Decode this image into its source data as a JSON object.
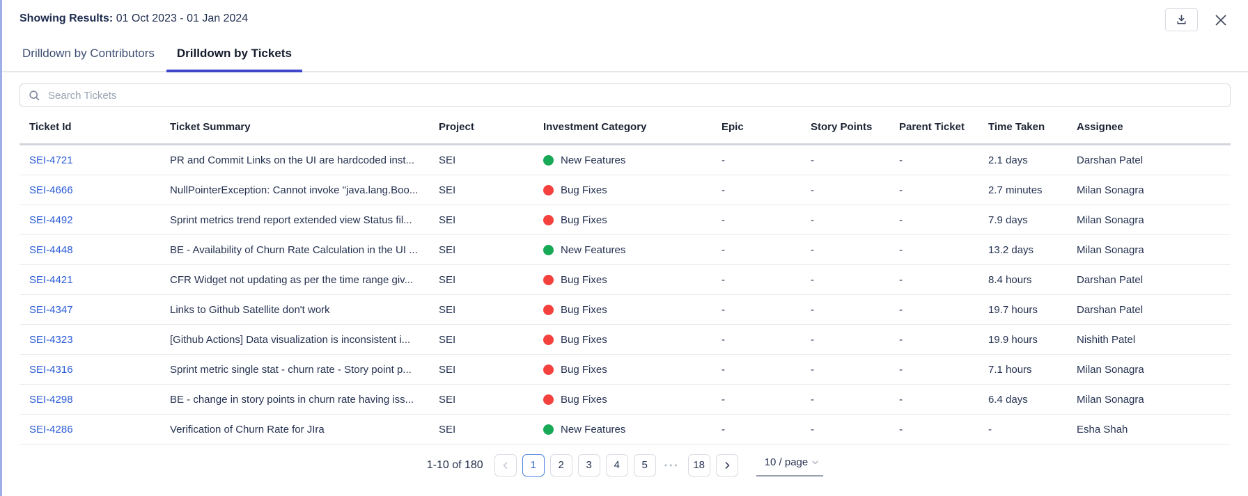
{
  "header": {
    "showing_results_label": "Showing Results:",
    "date_range": "01 Oct 2023 - 01 Jan 2024"
  },
  "tabs": [
    {
      "label": "Drilldown by Contributors",
      "active": false
    },
    {
      "label": "Drilldown by Tickets",
      "active": true
    }
  ],
  "search": {
    "placeholder": "Search Tickets"
  },
  "table": {
    "columns": [
      "Ticket Id",
      "Ticket Summary",
      "Project",
      "Investment Category",
      "Epic",
      "Story Points",
      "Parent Ticket",
      "Time Taken",
      "Assignee"
    ],
    "rows": [
      {
        "ticket_id": "SEI-4721",
        "summary": "PR and Commit Links on the UI are hardcoded inst...",
        "project": "SEI",
        "category": "New Features",
        "category_color": "#18A957",
        "epic": "-",
        "story_points": "-",
        "parent_ticket": "-",
        "time_taken": "2.1 days",
        "assignee": "Darshan Patel"
      },
      {
        "ticket_id": "SEI-4666",
        "summary": "NullPointerException: Cannot invoke \"java.lang.Boo...",
        "project": "SEI",
        "category": "Bug Fixes",
        "category_color": "#F5413E",
        "epic": "-",
        "story_points": "-",
        "parent_ticket": "-",
        "time_taken": "2.7 minutes",
        "assignee": "Milan Sonagra"
      },
      {
        "ticket_id": "SEI-4492",
        "summary": "Sprint metrics trend report extended view Status fil...",
        "project": "SEI",
        "category": "Bug Fixes",
        "category_color": "#F5413E",
        "epic": "-",
        "story_points": "-",
        "parent_ticket": "-",
        "time_taken": "7.9 days",
        "assignee": "Milan Sonagra"
      },
      {
        "ticket_id": "SEI-4448",
        "summary": "BE - Availability of Churn Rate Calculation in the UI ...",
        "project": "SEI",
        "category": "New Features",
        "category_color": "#18A957",
        "epic": "-",
        "story_points": "-",
        "parent_ticket": "-",
        "time_taken": "13.2 days",
        "assignee": "Milan Sonagra"
      },
      {
        "ticket_id": "SEI-4421",
        "summary": "CFR Widget not updating as per the time range giv...",
        "project": "SEI",
        "category": "Bug Fixes",
        "category_color": "#F5413E",
        "epic": "-",
        "story_points": "-",
        "parent_ticket": "-",
        "time_taken": "8.4 hours",
        "assignee": "Darshan Patel"
      },
      {
        "ticket_id": "SEI-4347",
        "summary": "Links to Github Satellite don't work",
        "project": "SEI",
        "category": "Bug Fixes",
        "category_color": "#F5413E",
        "epic": "-",
        "story_points": "-",
        "parent_ticket": "-",
        "time_taken": "19.7 hours",
        "assignee": "Darshan Patel"
      },
      {
        "ticket_id": "SEI-4323",
        "summary": "[Github Actions] Data visualization is inconsistent i...",
        "project": "SEI",
        "category": "Bug Fixes",
        "category_color": "#F5413E",
        "epic": "-",
        "story_points": "-",
        "parent_ticket": "-",
        "time_taken": "19.9 hours",
        "assignee": "Nishith Patel"
      },
      {
        "ticket_id": "SEI-4316",
        "summary": "Sprint metric single stat - churn rate - Story point p...",
        "project": "SEI",
        "category": "Bug Fixes",
        "category_color": "#F5413E",
        "epic": "-",
        "story_points": "-",
        "parent_ticket": "-",
        "time_taken": "7.1 hours",
        "assignee": "Milan Sonagra"
      },
      {
        "ticket_id": "SEI-4298",
        "summary": "BE - change in story points in churn rate having iss...",
        "project": "SEI",
        "category": "Bug Fixes",
        "category_color": "#F5413E",
        "epic": "-",
        "story_points": "-",
        "parent_ticket": "-",
        "time_taken": "6.4 days",
        "assignee": "Milan Sonagra"
      },
      {
        "ticket_id": "SEI-4286",
        "summary": "Verification of Churn Rate for JIra",
        "project": "SEI",
        "category": "New Features",
        "category_color": "#18A957",
        "epic": "-",
        "story_points": "-",
        "parent_ticket": "-",
        "time_taken": "-",
        "assignee": "Esha Shah"
      }
    ]
  },
  "pagination": {
    "range_text": "1-10 of 180",
    "pages": [
      "1",
      "2",
      "3",
      "4",
      "5"
    ],
    "active_page": "1",
    "ellipsis": "•••",
    "last_page": "18",
    "page_size": "10 / page"
  },
  "colors": {
    "tab_accent": "#3F48CC",
    "link": "#2A5BD7",
    "new_features": "#18A957",
    "bug_fixes": "#F5413E",
    "left_border": "#9FAFE6",
    "active_page_border": "#4D82E0"
  }
}
